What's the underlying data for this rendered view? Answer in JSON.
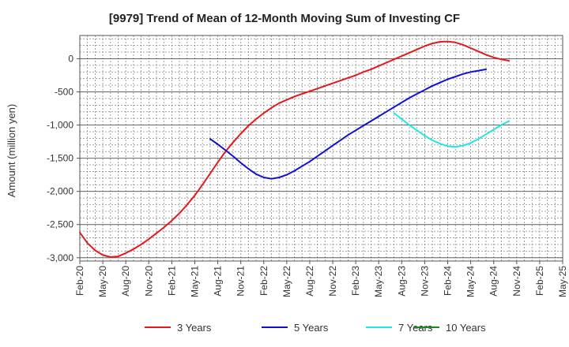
{
  "chart_data": {
    "type": "line",
    "title": "[9979]  Trend of Mean of 12-Month Moving Sum of Investing CF",
    "xlabel": "",
    "ylabel": "Amount (million yen)",
    "ylim": [
      -3050,
      350
    ],
    "yticks": [
      0,
      -500,
      -1000,
      -1500,
      -2000,
      -2500,
      -3000
    ],
    "ytick_labels": [
      "0",
      "-500",
      "-1,000",
      "-1,500",
      "-2,000",
      "-2,500",
      "-3,000"
    ],
    "x_start": "Feb-20",
    "x_end": "May-25",
    "xtick_labels": [
      "Feb-20",
      "May-20",
      "Aug-20",
      "Nov-20",
      "Feb-21",
      "May-21",
      "Aug-21",
      "Nov-21",
      "Feb-22",
      "May-22",
      "Aug-22",
      "Nov-22",
      "Feb-23",
      "May-23",
      "Aug-23",
      "Nov-23",
      "Feb-24",
      "May-24",
      "Aug-24",
      "Nov-24",
      "Feb-25",
      "May-25"
    ],
    "grid": true,
    "legend_position": "bottom",
    "series": [
      {
        "name": "3 Years",
        "color": "#e31a1c",
        "points": [
          [
            "Feb-20",
            -2620
          ],
          [
            "Mar-20",
            -2780
          ],
          [
            "Apr-20",
            -2890
          ],
          [
            "May-20",
            -2960
          ],
          [
            "Jun-20",
            -2990
          ],
          [
            "Jul-20",
            -2980
          ],
          [
            "Aug-20",
            -2930
          ],
          [
            "Sep-20",
            -2870
          ],
          [
            "Oct-20",
            -2800
          ],
          [
            "Nov-20",
            -2720
          ],
          [
            "Dec-20",
            -2630
          ],
          [
            "Jan-21",
            -2540
          ],
          [
            "Feb-21",
            -2440
          ],
          [
            "Mar-21",
            -2330
          ],
          [
            "Apr-21",
            -2200
          ],
          [
            "May-21",
            -2060
          ],
          [
            "Jun-21",
            -1900
          ],
          [
            "Jul-21",
            -1730
          ],
          [
            "Aug-21",
            -1560
          ],
          [
            "Sep-21",
            -1400
          ],
          [
            "Oct-21",
            -1260
          ],
          [
            "Nov-21",
            -1130
          ],
          [
            "Dec-21",
            -1010
          ],
          [
            "Jan-22",
            -910
          ],
          [
            "Feb-22",
            -820
          ],
          [
            "Mar-22",
            -740
          ],
          [
            "Apr-22",
            -670
          ],
          [
            "May-22",
            -620
          ],
          [
            "Jun-22",
            -570
          ],
          [
            "Jul-22",
            -530
          ],
          [
            "Aug-22",
            -490
          ],
          [
            "Sep-22",
            -450
          ],
          [
            "Oct-22",
            -410
          ],
          [
            "Nov-22",
            -370
          ],
          [
            "Dec-22",
            -330
          ],
          [
            "Jan-23",
            -290
          ],
          [
            "Feb-23",
            -250
          ],
          [
            "Mar-23",
            -200
          ],
          [
            "Apr-23",
            -160
          ],
          [
            "May-23",
            -110
          ],
          [
            "Jun-23",
            -60
          ],
          [
            "Jul-23",
            -10
          ],
          [
            "Aug-23",
            40
          ],
          [
            "Sep-23",
            90
          ],
          [
            "Oct-23",
            140
          ],
          [
            "Nov-23",
            190
          ],
          [
            "Dec-23",
            230
          ],
          [
            "Jan-24",
            255
          ],
          [
            "Feb-24",
            260
          ],
          [
            "Mar-24",
            245
          ],
          [
            "Apr-24",
            210
          ],
          [
            "May-24",
            160
          ],
          [
            "Jun-24",
            110
          ],
          [
            "Jul-24",
            60
          ],
          [
            "Aug-24",
            20
          ],
          [
            "Sep-24",
            -10
          ],
          [
            "Oct-24",
            -30
          ]
        ]
      },
      {
        "name": "5 Years",
        "color": "#1010d0",
        "points": [
          [
            "Jul-21",
            -1210
          ],
          [
            "Aug-21",
            -1290
          ],
          [
            "Sep-21",
            -1380
          ],
          [
            "Oct-21",
            -1470
          ],
          [
            "Nov-21",
            -1570
          ],
          [
            "Dec-21",
            -1660
          ],
          [
            "Jan-22",
            -1740
          ],
          [
            "Feb-22",
            -1790
          ],
          [
            "Mar-22",
            -1810
          ],
          [
            "Apr-22",
            -1790
          ],
          [
            "May-22",
            -1750
          ],
          [
            "Jun-22",
            -1690
          ],
          [
            "Jul-22",
            -1620
          ],
          [
            "Aug-22",
            -1550
          ],
          [
            "Sep-22",
            -1470
          ],
          [
            "Oct-22",
            -1390
          ],
          [
            "Nov-22",
            -1310
          ],
          [
            "Dec-22",
            -1230
          ],
          [
            "Jan-23",
            -1150
          ],
          [
            "Feb-23",
            -1080
          ],
          [
            "Mar-23",
            -1010
          ],
          [
            "Apr-23",
            -940
          ],
          [
            "May-23",
            -870
          ],
          [
            "Jun-23",
            -800
          ],
          [
            "Jul-23",
            -730
          ],
          [
            "Aug-23",
            -660
          ],
          [
            "Sep-23",
            -590
          ],
          [
            "Oct-23",
            -530
          ],
          [
            "Nov-23",
            -470
          ],
          [
            "Dec-23",
            -410
          ],
          [
            "Jan-24",
            -360
          ],
          [
            "Feb-24",
            -310
          ],
          [
            "Mar-24",
            -270
          ],
          [
            "Apr-24",
            -230
          ],
          [
            "May-24",
            -200
          ],
          [
            "Jun-24",
            -180
          ],
          [
            "Jul-24",
            -160
          ]
        ]
      },
      {
        "name": "7 Years",
        "color": "#22e6e6",
        "points": [
          [
            "Jul-23",
            -820
          ],
          [
            "Aug-23",
            -910
          ],
          [
            "Sep-23",
            -1000
          ],
          [
            "Oct-23",
            -1080
          ],
          [
            "Nov-23",
            -1160
          ],
          [
            "Dec-23",
            -1230
          ],
          [
            "Jan-24",
            -1280
          ],
          [
            "Feb-24",
            -1320
          ],
          [
            "Mar-24",
            -1330
          ],
          [
            "Apr-24",
            -1310
          ],
          [
            "May-24",
            -1270
          ],
          [
            "Jun-24",
            -1210
          ],
          [
            "Jul-24",
            -1140
          ],
          [
            "Aug-24",
            -1070
          ],
          [
            "Sep-24",
            -1000
          ],
          [
            "Oct-24",
            -940
          ]
        ]
      },
      {
        "name": "10 Years",
        "color": "#1a8a1a",
        "points": []
      }
    ]
  }
}
